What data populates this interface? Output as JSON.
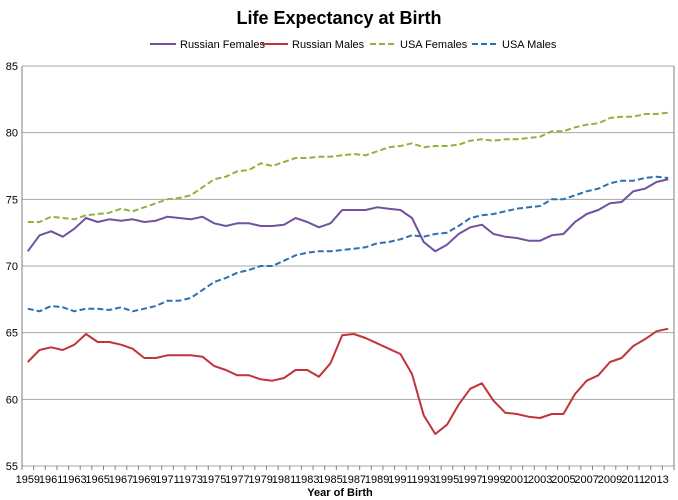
{
  "chart_data": {
    "type": "line",
    "title": "Life Expectancy at Birth",
    "xlabel": "Year of Birth",
    "ylabel": "",
    "ylim": [
      55,
      85
    ],
    "yticks": [
      "55",
      "60",
      "65",
      "70",
      "75",
      "80",
      "85"
    ],
    "xtick_labels": [
      "1959",
      "1961",
      "1963",
      "1965",
      "1967",
      "1969",
      "1971",
      "1973",
      "1975",
      "1977",
      "1979",
      "1981",
      "1983",
      "1985",
      "1987",
      "1989",
      "1991",
      "1993",
      "1995",
      "1997",
      "1999",
      "2001",
      "2003",
      "2005",
      "2007",
      "2009",
      "2011",
      "2013"
    ],
    "grid": "horizontal",
    "legend_position": "top",
    "x": [
      1959,
      1960,
      1961,
      1962,
      1963,
      1964,
      1965,
      1966,
      1967,
      1968,
      1969,
      1970,
      1971,
      1972,
      1973,
      1974,
      1975,
      1976,
      1977,
      1978,
      1979,
      1980,
      1981,
      1982,
      1983,
      1984,
      1985,
      1986,
      1987,
      1988,
      1989,
      1990,
      1991,
      1992,
      1993,
      1994,
      1995,
      1996,
      1997,
      1998,
      1999,
      2000,
      2001,
      2002,
      2003,
      2004,
      2005,
      2006,
      2007,
      2008,
      2009,
      2010,
      2011,
      2012,
      2013,
      2014
    ],
    "series": [
      {
        "name": "Russian Females",
        "color": "#7052a0",
        "dash": "solid",
        "values": [
          71.1,
          72.3,
          72.6,
          72.2,
          72.8,
          73.6,
          73.3,
          73.5,
          73.4,
          73.5,
          73.3,
          73.4,
          73.7,
          73.6,
          73.5,
          73.7,
          73.2,
          73.0,
          73.2,
          73.2,
          73.0,
          73.0,
          73.1,
          73.6,
          73.3,
          72.9,
          73.2,
          74.2,
          74.2,
          74.2,
          74.4,
          74.3,
          74.2,
          73.6,
          71.8,
          71.1,
          71.6,
          72.4,
          72.9,
          73.1,
          72.4,
          72.2,
          72.1,
          71.9,
          71.9,
          72.3,
          72.4,
          73.3,
          73.9,
          74.2,
          74.7,
          74.8,
          75.6,
          75.8,
          76.3,
          76.5
        ]
      },
      {
        "name": "Russian Males",
        "color": "#c0343a",
        "dash": "solid",
        "values": [
          62.8,
          63.7,
          63.9,
          63.7,
          64.1,
          64.9,
          64.3,
          64.3,
          64.1,
          63.8,
          63.1,
          63.1,
          63.3,
          63.3,
          63.3,
          63.2,
          62.5,
          62.2,
          61.8,
          61.8,
          61.5,
          61.4,
          61.6,
          62.2,
          62.2,
          61.7,
          62.7,
          64.8,
          64.9,
          64.6,
          64.2,
          63.8,
          63.4,
          61.9,
          58.8,
          57.4,
          58.1,
          59.6,
          60.8,
          61.2,
          59.9,
          59.0,
          58.9,
          58.7,
          58.6,
          58.9,
          58.9,
          60.4,
          61.4,
          61.8,
          62.8,
          63.1,
          64.0,
          64.5,
          65.1,
          65.3
        ]
      },
      {
        "name": "USA Females",
        "color": "#8fb43c",
        "dash": "dashed",
        "values": [
          73.3,
          73.3,
          73.7,
          73.6,
          73.5,
          73.8,
          73.9,
          74.0,
          74.3,
          74.1,
          74.4,
          74.7,
          75.0,
          75.1,
          75.3,
          75.9,
          76.5,
          76.7,
          77.1,
          77.2,
          77.7,
          77.5,
          77.8,
          78.1,
          78.1,
          78.2,
          78.2,
          78.3,
          78.4,
          78.3,
          78.6,
          78.9,
          79.0,
          79.2,
          78.9,
          79.0,
          79.0,
          79.1,
          79.4,
          79.5,
          79.4,
          79.5,
          79.5,
          79.6,
          79.7,
          80.1,
          80.1,
          80.4,
          80.6,
          80.7,
          81.1,
          81.2,
          81.2,
          81.4,
          81.4,
          81.5
        ]
      },
      {
        "name": "USA Males",
        "color": "#2f6fb2",
        "dash": "dashed",
        "values": [
          66.8,
          66.6,
          67.0,
          66.9,
          66.6,
          66.8,
          66.8,
          66.7,
          66.9,
          66.6,
          66.8,
          67.0,
          67.4,
          67.4,
          67.6,
          68.2,
          68.8,
          69.1,
          69.5,
          69.7,
          70.0,
          70.0,
          70.4,
          70.8,
          71.0,
          71.1,
          71.1,
          71.2,
          71.3,
          71.4,
          71.7,
          71.8,
          72.0,
          72.3,
          72.2,
          72.4,
          72.5,
          73.0,
          73.6,
          73.8,
          73.9,
          74.1,
          74.3,
          74.4,
          74.5,
          75.0,
          75.0,
          75.3,
          75.6,
          75.8,
          76.2,
          76.4,
          76.4,
          76.6,
          76.7,
          76.6
        ]
      }
    ]
  }
}
